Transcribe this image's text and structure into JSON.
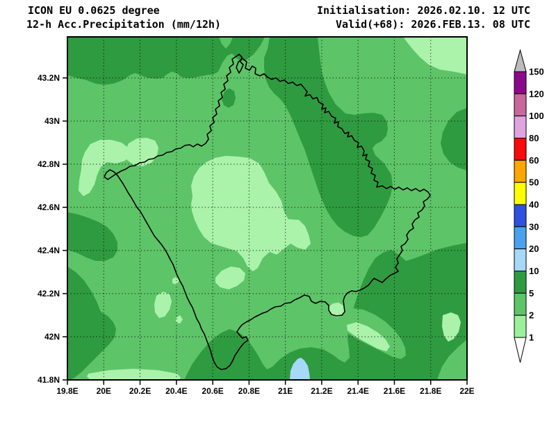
{
  "header": {
    "model": "ICON EU 0.0625 degree",
    "product": "12-h Acc.Precipitation (mm/12h)",
    "initialisation": "Initialisation: 2026.02.10. 12 UTC",
    "valid": "Valid(+68): 2026.FEB.13. 08 UTC"
  },
  "map": {
    "x_axis_labels": [
      "19.8E",
      "20E",
      "20.2E",
      "20.4E",
      "20.6E",
      "20.8E",
      "21E",
      "21.2E",
      "21.4E",
      "21.6E",
      "21.8E",
      "22E"
    ],
    "y_axis_labels": [
      "43.2N",
      "43N",
      "42.8N",
      "42.6N",
      "42.4N",
      "42.2N",
      "42N",
      "41.8N"
    ]
  },
  "colorbar": {
    "tick_labels": [
      "150",
      "120",
      "100",
      "80",
      "60",
      "50",
      "40",
      "30",
      "20",
      "10",
      "5",
      "2",
      "1"
    ],
    "segment_colors_top_to_bottom": [
      "#8b0a8b",
      "#c8689c",
      "#dfa3df",
      "#fa0a0a",
      "#ffa600",
      "#ffff00",
      "#3050e0",
      "#4ba1f0",
      "#a6d8f8",
      "#2f9b40",
      "#5ec468",
      "#9cf09c"
    ],
    "over_arrow_color": "#bcbcbc",
    "under_arrow_color": "#fdfdfd"
  },
  "field_colors": {
    "light_1_2": "#abf2ab",
    "medium_2_5": "#5ec468",
    "dark_5_10": "#2f9b40",
    "blue_10_20": "#a6d8f8"
  }
}
